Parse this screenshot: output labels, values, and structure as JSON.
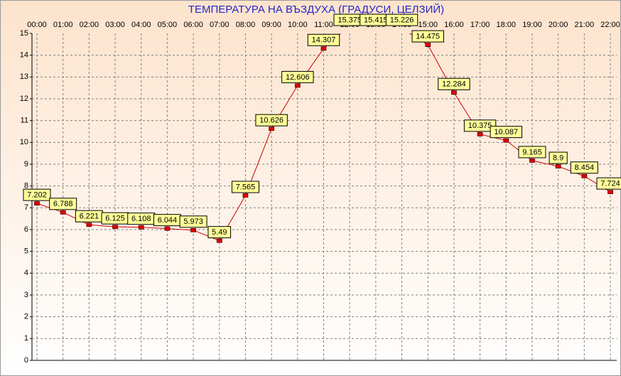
{
  "chart_data": {
    "type": "line",
    "title": "ТЕМПЕРАТУРА НА ВЪЗДУХА  (ГРАДУСИ, ЦЕЛЗИЙ)",
    "categories": [
      "00:00",
      "01:00",
      "02:00",
      "03:00",
      "04:00",
      "05:00",
      "06:00",
      "07:00",
      "08:00",
      "09:00",
      "10:00",
      "11:00",
      "12:00",
      "13:00",
      "14:00",
      "15:00",
      "16:00",
      "17:00",
      "18:00",
      "19:00",
      "20:00",
      "21:00",
      "22:00"
    ],
    "series": [
      {
        "color": "#cc0000",
        "values": [
          7.202,
          6.788,
          6.221,
          6.125,
          6.108,
          6.044,
          5.973,
          5.49,
          7.565,
          10.626,
          12.606,
          14.307,
          15.375,
          15.415,
          15.226,
          14.475,
          12.284,
          10.375,
          10.087,
          9.165,
          8.9,
          8.454,
          7.724
        ]
      }
    ],
    "ylim": [
      0,
      15
    ],
    "yticks": [
      0,
      1,
      2,
      3,
      4,
      5,
      6,
      7,
      8,
      9,
      10,
      11,
      12,
      13,
      14,
      15
    ],
    "grid": true
  }
}
